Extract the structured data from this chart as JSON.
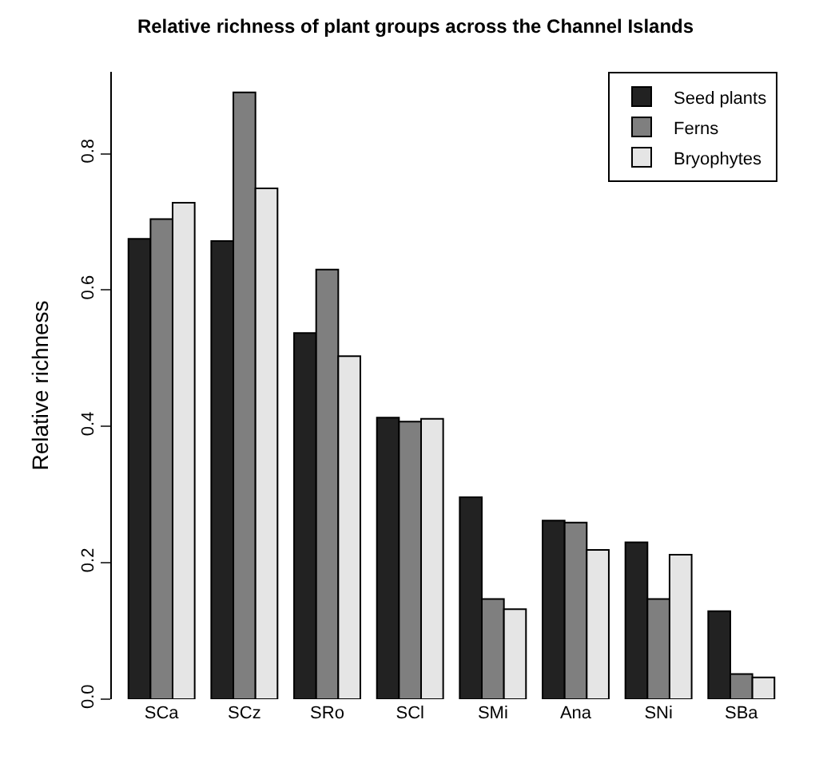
{
  "chart_data": {
    "type": "bar",
    "title": "Relative richness of plant groups across the Channel Islands",
    "ylabel": "Relative richness",
    "categories": [
      "SCa",
      "SCz",
      "SRo",
      "SCl",
      "SMi",
      "Ana",
      "SNi",
      "SBa"
    ],
    "series": [
      {
        "name": "Seed plants",
        "color": "#222222",
        "values": [
          0.675,
          0.672,
          0.537,
          0.413,
          0.296,
          0.262,
          0.23,
          0.129
        ]
      },
      {
        "name": "Ferns",
        "color": "#7f7f7f",
        "values": [
          0.704,
          0.89,
          0.63,
          0.407,
          0.147,
          0.259,
          0.147,
          0.037
        ]
      },
      {
        "name": "Bryophytes",
        "color": "#e5e5e5",
        "values": [
          0.728,
          0.749,
          0.503,
          0.411,
          0.132,
          0.219,
          0.212,
          0.032
        ]
      }
    ],
    "ylim": [
      0,
      0.92
    ],
    "yticks": [
      {
        "value": 0,
        "label": "0.0"
      },
      0.2,
      0.4,
      0.6,
      0.8
    ],
    "legend": "top right"
  }
}
